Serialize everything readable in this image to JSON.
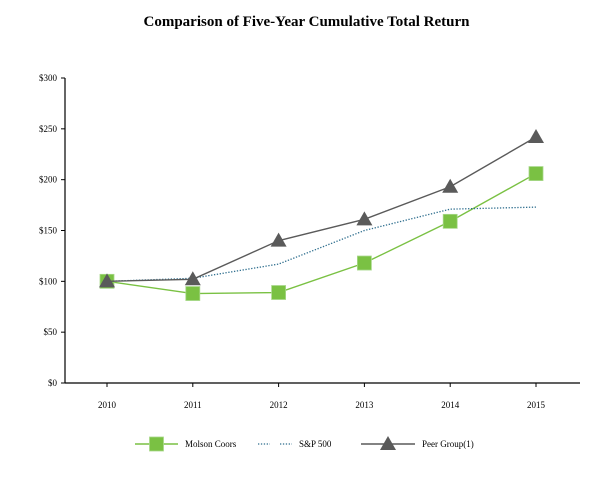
{
  "chart_data": {
    "type": "line",
    "title": "Comparison of Five-Year Cumulative Total Return",
    "xlabel": "",
    "ylabel": "",
    "categories": [
      "2010",
      "2011",
      "2012",
      "2013",
      "2014",
      "2015"
    ],
    "ylim": [
      0,
      300
    ],
    "yticks": [
      0,
      50,
      100,
      150,
      200,
      250,
      300
    ],
    "ytick_labels": [
      "$0",
      "$50",
      "$100",
      "$150",
      "$200",
      "$250",
      "$300"
    ],
    "grid": false,
    "legend_position": "bottom",
    "series": [
      {
        "name": "Molson Coors",
        "values": [
          100,
          88,
          89,
          118,
          159,
          206
        ],
        "color": "#7ac143",
        "style": "solid",
        "marker": "square"
      },
      {
        "name": "S&P 500",
        "values": [
          100,
          103,
          117,
          150,
          171,
          173
        ],
        "color": "#2e6e8e",
        "style": "dotted",
        "marker": "none"
      },
      {
        "name": "Peer Group(1)",
        "values": [
          100,
          102,
          140,
          161,
          193,
          242
        ],
        "color": "#5a5a5a",
        "style": "solid",
        "marker": "triangle"
      }
    ]
  }
}
